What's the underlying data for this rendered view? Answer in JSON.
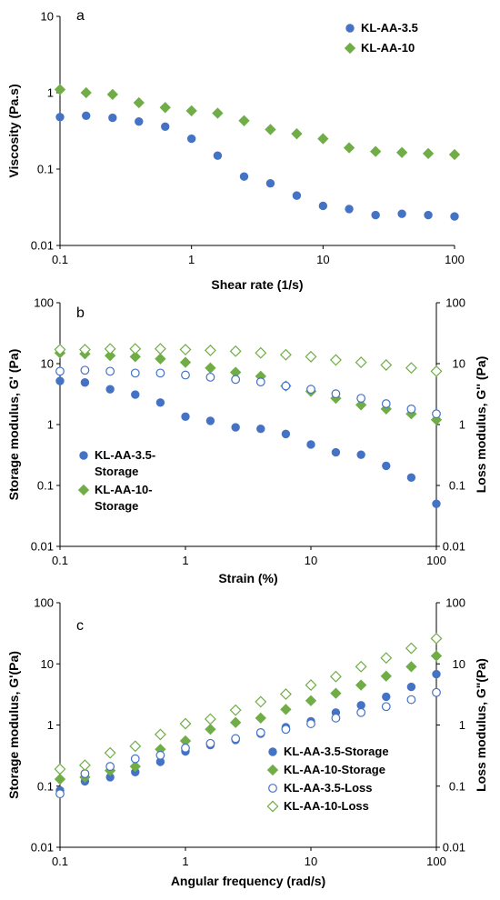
{
  "figure": {
    "description": "Three-panel rheology figure"
  },
  "colors": {
    "blue": "#4472C4",
    "green": "#70AD47",
    "axis": "#000000"
  },
  "chart_data": [
    {
      "panel": "a",
      "type": "scatter",
      "xlabel": "Shear rate (1/s)",
      "ylabel": "Viscosity (Pa.s)",
      "xscale": "log",
      "yscale": "log",
      "xlim": [
        0.1,
        100
      ],
      "ylim": [
        0.01,
        10
      ],
      "xticks": [
        "0.1",
        "1",
        "10",
        "100"
      ],
      "yticks": [
        "0.01",
        "0.1",
        "1",
        "10"
      ],
      "legend_position": "top-right",
      "series": [
        {
          "name": "KL-AA-3.5",
          "color": "#4472C4",
          "marker": "circle",
          "filled": true,
          "x": [
            0.1,
            0.158,
            0.251,
            0.398,
            0.631,
            1.0,
            1.58,
            2.51,
            3.98,
            6.31,
            10,
            15.8,
            25.1,
            39.8,
            63.1,
            100
          ],
          "y": [
            0.48,
            0.5,
            0.47,
            0.42,
            0.36,
            0.25,
            0.15,
            0.08,
            0.065,
            0.045,
            0.033,
            0.03,
            0.025,
            0.026,
            0.025,
            0.024
          ]
        },
        {
          "name": "KL-AA-10",
          "color": "#70AD47",
          "marker": "diamond",
          "filled": true,
          "x": [
            0.1,
            0.158,
            0.251,
            0.398,
            0.631,
            1.0,
            1.58,
            2.51,
            3.98,
            6.31,
            10,
            15.8,
            25.1,
            39.8,
            63.1,
            100
          ],
          "y": [
            1.1,
            1.0,
            0.95,
            0.74,
            0.64,
            0.58,
            0.54,
            0.43,
            0.33,
            0.29,
            0.25,
            0.19,
            0.17,
            0.165,
            0.16,
            0.155
          ]
        }
      ]
    },
    {
      "panel": "b",
      "type": "scatter",
      "xlabel": "Strain (%)",
      "ylabel": "Storage modulus, G' (Pa)",
      "ylabel_right": "Loss modulus, G'' (Pa)",
      "xscale": "log",
      "yscale": "log",
      "xlim": [
        0.1,
        100
      ],
      "ylim": [
        0.01,
        100
      ],
      "xticks": [
        "0.1",
        "1",
        "10",
        "100"
      ],
      "yticks": [
        "0.01",
        "0.1",
        "1",
        "10",
        "100"
      ],
      "legend_position": "bottom-left",
      "series": [
        {
          "name": "KL-AA-3.5-Storage",
          "legend_lines": [
            "KL-AA-3.5-",
            "Storage"
          ],
          "color": "#4472C4",
          "marker": "circle",
          "filled": true,
          "in_legend": true,
          "x": [
            0.1,
            0.158,
            0.251,
            0.398,
            0.631,
            1.0,
            1.58,
            2.51,
            3.98,
            6.31,
            10,
            15.8,
            25.1,
            39.8,
            63.1,
            100
          ],
          "y": [
            5.2,
            4.9,
            3.8,
            3.1,
            2.3,
            1.35,
            1.15,
            0.9,
            0.85,
            0.7,
            0.47,
            0.35,
            0.32,
            0.21,
            0.135,
            0.05
          ]
        },
        {
          "name": "KL-AA-10-Storage",
          "legend_lines": [
            "KL-AA-10-",
            "Storage"
          ],
          "color": "#70AD47",
          "marker": "diamond",
          "filled": true,
          "in_legend": true,
          "x": [
            0.1,
            0.158,
            0.251,
            0.398,
            0.631,
            1.0,
            1.58,
            2.51,
            3.98,
            6.31,
            10,
            15.8,
            25.1,
            39.8,
            63.1,
            100
          ],
          "y": [
            15,
            14.5,
            13.5,
            13,
            12,
            10.5,
            8.5,
            7.2,
            6.2,
            4.3,
            3.5,
            2.7,
            2.1,
            1.8,
            1.5,
            1.2
          ]
        },
        {
          "name": "KL-AA-3.5-Loss",
          "color": "#4472C4",
          "marker": "circle",
          "filled": false,
          "in_legend": false,
          "x": [
            0.1,
            0.158,
            0.251,
            0.398,
            0.631,
            1.0,
            1.58,
            2.51,
            3.98,
            6.31,
            10,
            15.8,
            25.1,
            39.8,
            63.1,
            100
          ],
          "y": [
            7.5,
            7.8,
            7.5,
            7.0,
            7.0,
            6.5,
            6.0,
            5.5,
            5.0,
            4.3,
            3.8,
            3.2,
            2.7,
            2.2,
            1.8,
            1.5
          ]
        },
        {
          "name": "KL-AA-10-Loss",
          "color": "#70AD47",
          "marker": "diamond",
          "filled": false,
          "in_legend": false,
          "x": [
            0.1,
            0.158,
            0.251,
            0.398,
            0.631,
            1.0,
            1.58,
            2.51,
            3.98,
            6.31,
            10,
            15.8,
            25.1,
            39.8,
            63.1,
            100
          ],
          "y": [
            17,
            17,
            17.5,
            17.5,
            17.5,
            17,
            16.5,
            16,
            15,
            14,
            13,
            11.5,
            10.5,
            9.5,
            8.5,
            7.5
          ]
        }
      ]
    },
    {
      "panel": "c",
      "type": "scatter",
      "xlabel": "Angular frequency (rad/s)",
      "ylabel": "Storage modulus, G'(Pa)",
      "ylabel_right": "Loss modulus, G\"(Pa)",
      "xscale": "log",
      "yscale": "log",
      "xlim": [
        0.1,
        100
      ],
      "ylim": [
        0.01,
        100
      ],
      "xticks": [
        "0.1",
        "1",
        "10",
        "100"
      ],
      "yticks": [
        "0.01",
        "0.1",
        "1",
        "10",
        "100"
      ],
      "legend_position": "bottom-right",
      "series": [
        {
          "name": "KL-AA-3.5-Storage",
          "color": "#4472C4",
          "marker": "circle",
          "filled": true,
          "in_legend": true,
          "x": [
            0.1,
            0.158,
            0.251,
            0.398,
            0.631,
            1.0,
            1.58,
            2.51,
            3.98,
            6.31,
            10,
            15.8,
            25.1,
            39.8,
            63.1,
            100
          ],
          "y": [
            0.085,
            0.12,
            0.14,
            0.17,
            0.25,
            0.37,
            0.47,
            0.57,
            0.72,
            0.92,
            1.15,
            1.6,
            2.1,
            2.9,
            4.2,
            6.8
          ]
        },
        {
          "name": "KL-AA-10-Storage",
          "color": "#70AD47",
          "marker": "diamond",
          "filled": true,
          "in_legend": true,
          "x": [
            0.1,
            0.158,
            0.251,
            0.398,
            0.631,
            1.0,
            1.58,
            2.51,
            3.98,
            6.31,
            10,
            15.8,
            25.1,
            39.8,
            63.1,
            100
          ],
          "y": [
            0.13,
            0.14,
            0.18,
            0.21,
            0.4,
            0.55,
            0.85,
            1.1,
            1.3,
            1.8,
            2.5,
            3.3,
            4.5,
            6.3,
            9.0,
            13.5
          ]
        },
        {
          "name": "KL-AA-3.5-Loss",
          "color": "#4472C4",
          "marker": "circle",
          "filled": false,
          "in_legend": true,
          "x": [
            0.1,
            0.158,
            0.251,
            0.398,
            0.631,
            1.0,
            1.58,
            2.51,
            3.98,
            6.31,
            10,
            15.8,
            25.1,
            39.8,
            63.1,
            100
          ],
          "y": [
            0.075,
            0.16,
            0.21,
            0.28,
            0.32,
            0.42,
            0.5,
            0.6,
            0.75,
            0.85,
            1.05,
            1.3,
            1.6,
            2.0,
            2.6,
            3.4
          ]
        },
        {
          "name": "KL-AA-10-Loss",
          "color": "#70AD47",
          "marker": "diamond",
          "filled": false,
          "in_legend": true,
          "x": [
            0.1,
            0.158,
            0.251,
            0.398,
            0.631,
            1.0,
            1.58,
            2.51,
            3.98,
            6.31,
            10,
            15.8,
            25.1,
            39.8,
            63.1,
            100
          ],
          "y": [
            0.19,
            0.22,
            0.35,
            0.45,
            0.7,
            1.05,
            1.25,
            1.75,
            2.4,
            3.2,
            4.5,
            6.2,
            9.0,
            12.5,
            18.0,
            26.0
          ]
        }
      ]
    }
  ]
}
